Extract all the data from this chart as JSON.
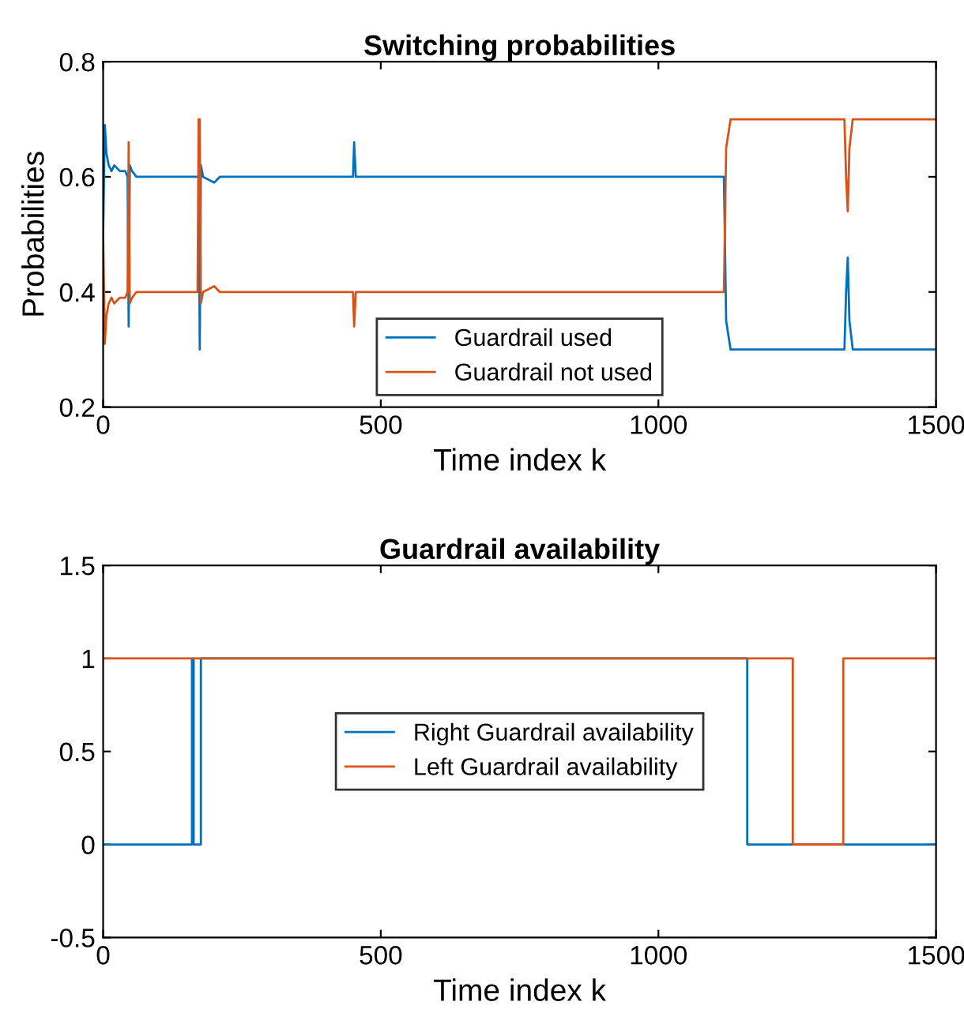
{
  "chart_data": [
    {
      "type": "line",
      "title": "Switching probabilities",
      "xlabel": "Time index k",
      "ylabel": "Probabilities",
      "xlim": [
        0,
        1500
      ],
      "xticks": [
        0,
        500,
        1000,
        1500
      ],
      "ylim": [
        0.2,
        0.8
      ],
      "yticks": [
        0.2,
        0.4,
        0.6,
        0.8
      ],
      "grid": false,
      "legend": "bottom",
      "x": [
        0,
        3,
        6,
        10,
        15,
        20,
        30,
        40,
        44,
        46,
        48,
        52,
        60,
        80,
        100,
        150,
        170,
        172,
        174,
        176,
        180,
        200,
        210,
        220,
        300,
        400,
        450,
        452,
        455,
        460,
        500,
        700,
        1000,
        1118,
        1122,
        1130,
        1335,
        1338,
        1341,
        1344,
        1350,
        1360,
        1500
      ],
      "series": [
        {
          "name": "Guardrail used",
          "color": "#0072bd",
          "values": [
            0.5,
            0.69,
            0.64,
            0.62,
            0.61,
            0.62,
            0.61,
            0.61,
            0.6,
            0.34,
            0.62,
            0.61,
            0.6,
            0.6,
            0.6,
            0.6,
            0.6,
            0.6,
            0.3,
            0.62,
            0.6,
            0.59,
            0.6,
            0.6,
            0.6,
            0.6,
            0.6,
            0.66,
            0.6,
            0.6,
            0.6,
            0.6,
            0.6,
            0.6,
            0.35,
            0.3,
            0.3,
            0.4,
            0.46,
            0.35,
            0.3,
            0.3,
            0.3
          ]
        },
        {
          "name": "Guardrail not used",
          "color": "#d95319",
          "values": [
            0.5,
            0.31,
            0.36,
            0.38,
            0.39,
            0.38,
            0.39,
            0.39,
            0.4,
            0.66,
            0.38,
            0.39,
            0.4,
            0.4,
            0.4,
            0.4,
            0.4,
            0.7,
            0.7,
            0.38,
            0.4,
            0.41,
            0.4,
            0.4,
            0.4,
            0.4,
            0.4,
            0.34,
            0.4,
            0.4,
            0.4,
            0.4,
            0.4,
            0.4,
            0.65,
            0.7,
            0.7,
            0.6,
            0.54,
            0.65,
            0.7,
            0.7,
            0.7
          ]
        }
      ]
    },
    {
      "type": "step",
      "title": "Guardrail availability",
      "xlabel": "Time index k",
      "xlim": [
        0,
        1500
      ],
      "xticks": [
        0,
        500,
        1000,
        1500
      ],
      "ylim": [
        -0.5,
        1.5
      ],
      "yticks": [
        -0.5,
        0,
        0.5,
        1,
        1.5
      ],
      "grid": false,
      "legend": "center",
      "series": [
        {
          "name": "Right Guardrail availability",
          "color": "#0072bd",
          "x": [
            0,
            160,
            163,
            176,
            1160,
            1500
          ],
          "values": [
            0,
            1,
            0,
            1,
            0,
            0
          ]
        },
        {
          "name": "Left Guardrail availability",
          "color": "#d95319",
          "x": [
            0,
            1242,
            1333,
            1500
          ],
          "values": [
            1,
            0,
            1,
            1
          ]
        }
      ]
    }
  ]
}
